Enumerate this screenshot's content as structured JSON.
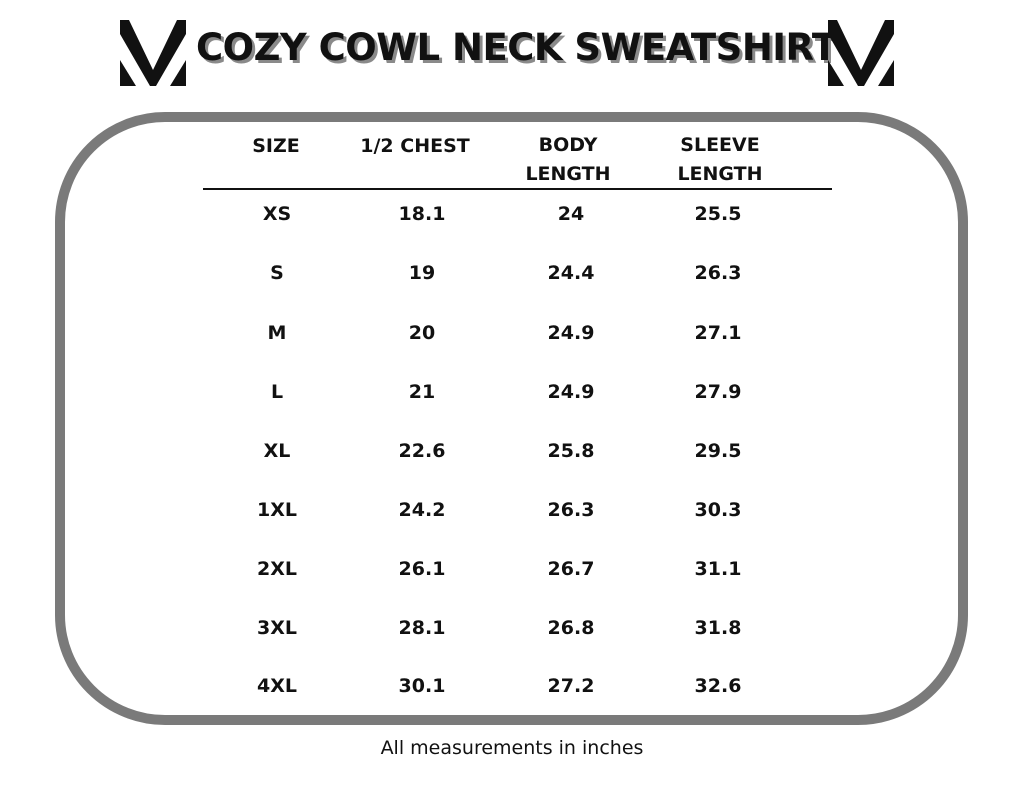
{
  "title": "COZY COWL NECK SWEATSHIRT",
  "logo_icon": "stylized-m-logo-icon",
  "columns": [
    {
      "line1": "",
      "line2": "SIZE"
    },
    {
      "line1": "",
      "line2": "1/2 CHEST"
    },
    {
      "line1": "BODY",
      "line2": "LENGTH"
    },
    {
      "line1": "SLEEVE",
      "line2": "LENGTH"
    }
  ],
  "rows": [
    [
      "XS",
      "18.1",
      "24",
      "25.5"
    ],
    [
      "S",
      "19",
      "24.4",
      "26.3"
    ],
    [
      "M",
      "20",
      "24.9",
      "27.1"
    ],
    [
      "L",
      "21",
      "24.9",
      "27.9"
    ],
    [
      "XL",
      "22.6",
      "25.8",
      "29.5"
    ],
    [
      "1XL",
      "24.2",
      "26.3",
      "30.3"
    ],
    [
      "2XL",
      "26.1",
      "26.7",
      "31.1"
    ],
    [
      "3XL",
      "28.1",
      "26.8",
      "31.8"
    ],
    [
      "4XL",
      "30.1",
      "27.2",
      "32.6"
    ]
  ],
  "footnote": "All measurements in inches",
  "colors": {
    "frame": "#7a7a7a",
    "text": "#111111",
    "title_shadow": "#8a8a8a"
  }
}
